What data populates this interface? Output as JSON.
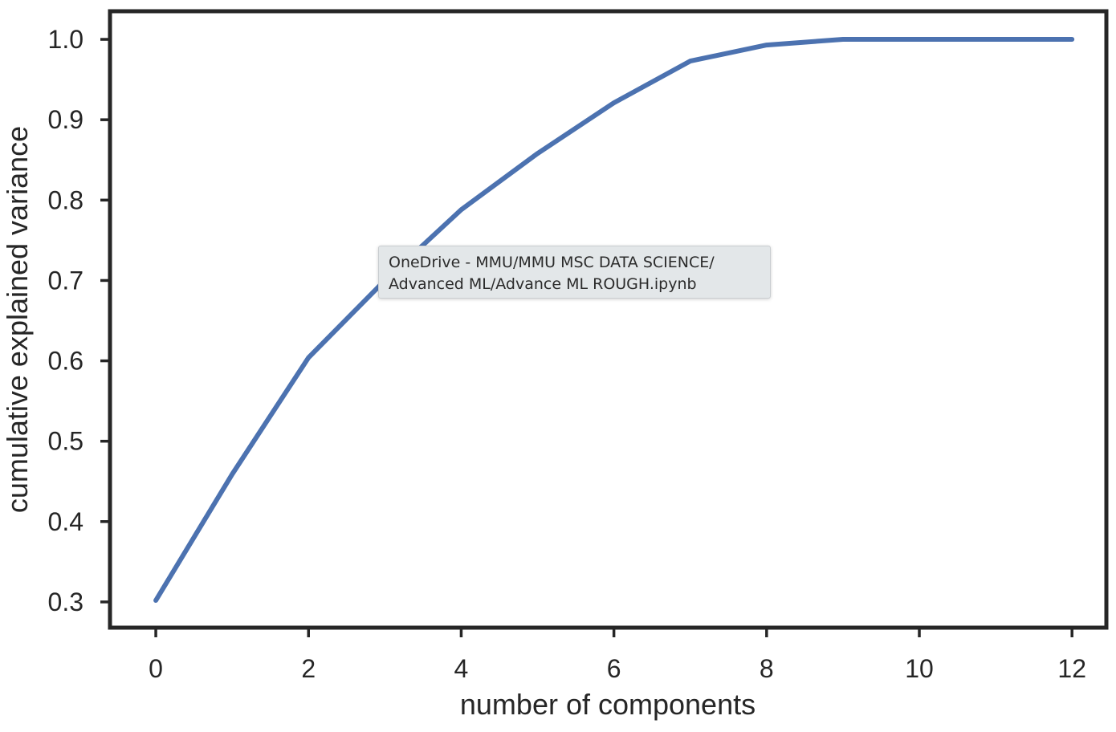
{
  "chart_data": {
    "type": "line",
    "title": "",
    "xlabel": "number of components",
    "ylabel": "cumulative explained variance",
    "x": [
      0,
      1,
      2,
      3,
      4,
      5,
      6,
      7,
      8,
      9,
      10,
      11,
      12
    ],
    "series": [
      {
        "values": [
          0.302,
          0.459,
          0.604,
          0.7,
          0.788,
          0.858,
          0.921,
          0.973,
          0.993,
          1.0,
          1.0,
          1.0,
          1.0
        ],
        "color": "#4c72b0"
      }
    ],
    "xlim": [
      -0.6,
      12.45
    ],
    "ylim": [
      0.268,
      1.035
    ],
    "xticks": [
      0,
      2,
      4,
      6,
      8,
      10,
      12
    ],
    "xtick_labels": [
      "0",
      "2",
      "4",
      "6",
      "8",
      "10",
      "12"
    ],
    "yticks": [
      0.3,
      0.4,
      0.5,
      0.6,
      0.7,
      0.8,
      0.9,
      1.0
    ],
    "ytick_labels": [
      "0.3",
      "0.4",
      "0.5",
      "0.6",
      "0.7",
      "0.8",
      "0.9",
      "1.0"
    ],
    "grid": false,
    "legend": "none"
  },
  "tooltip": {
    "line1": "OneDrive - MMU/MMU MSC DATA SCIENCE/",
    "line2": "Advanced ML/Advance ML ROUGH.ipynb"
  },
  "colors": {
    "line": "#4c72b0",
    "axes": "#262626",
    "tooltip_bg": "#e3e7e9"
  }
}
